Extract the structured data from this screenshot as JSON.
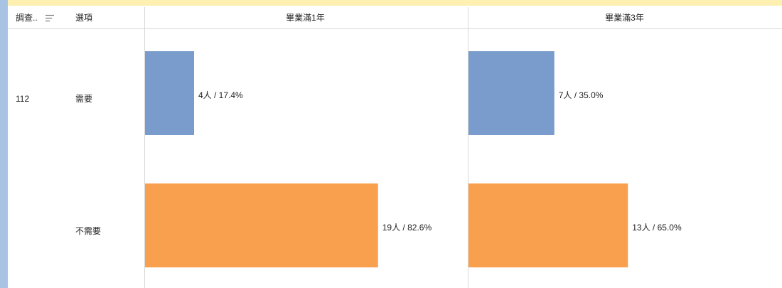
{
  "chart_data": {
    "type": "bar",
    "orientation": "horizontal",
    "columns": [
      "調查..",
      "選項"
    ],
    "survey": "112",
    "categories": [
      "需要",
      "不需要"
    ],
    "colors": [
      "#7a9ccc",
      "#f9a04e"
    ],
    "series": [
      {
        "name": "畢業滿1年",
        "values": [
          4,
          19
        ],
        "value_labels": [
          "4人 / 17.4%",
          "19人 / 82.6%"
        ]
      },
      {
        "name": "畢業滿3年",
        "values": [
          7,
          13
        ],
        "value_labels": [
          "7人 / 35.0%",
          "13人 / 65.0%"
        ]
      }
    ],
    "xlim": [
      0,
      26
    ]
  }
}
